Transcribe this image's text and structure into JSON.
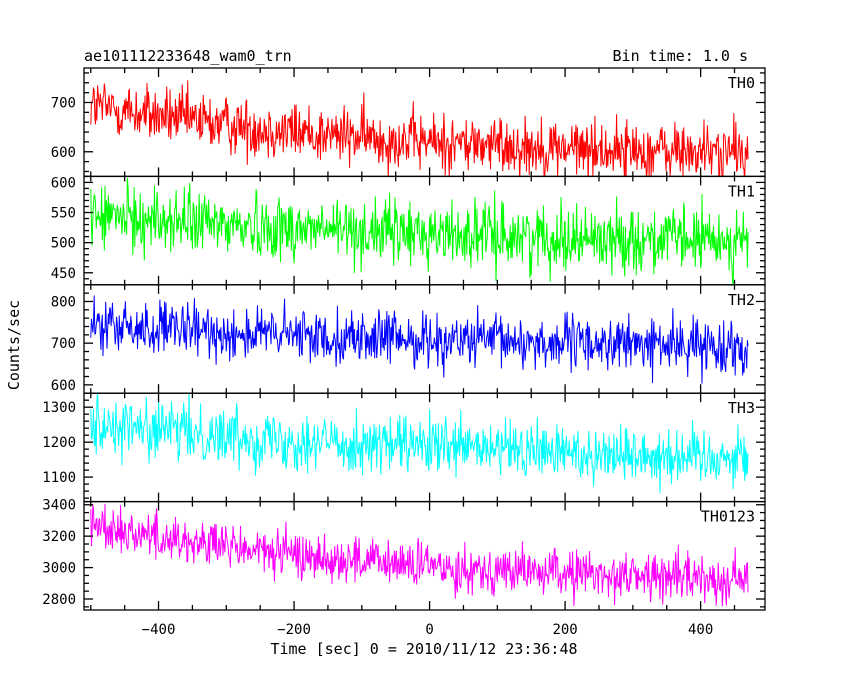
{
  "header": {
    "title": "ae101112233648_wam0_trn",
    "bin_time": "Bin time: 1.0 s"
  },
  "chart_data": {
    "type": "line",
    "xlabel": "Time [sec] 0 = 2010/11/12 23:36:48",
    "ylabel": "Counts/sec",
    "xlim": [
      -510,
      495
    ],
    "x_ticks": [
      -400,
      -200,
      0,
      200,
      400
    ],
    "x_range": [
      -500,
      470
    ],
    "series": [
      {
        "name": "TH0",
        "color": "#ff0000",
        "ylim": [
          550,
          770
        ],
        "y_ticks": [
          600,
          700
        ],
        "start": 695,
        "end": 585,
        "noise": 30,
        "decay": 2.2,
        "minor": 20
      },
      {
        "name": "TH1",
        "color": "#00ff00",
        "ylim": [
          430,
          610
        ],
        "y_ticks": [
          450,
          500,
          550,
          600
        ],
        "start": 545,
        "end": 492,
        "noise": 27,
        "decay": 1.6,
        "minor": 10
      },
      {
        "name": "TH2",
        "color": "#0000ff",
        "ylim": [
          580,
          840
        ],
        "y_ticks": [
          600,
          700,
          800
        ],
        "start": 740,
        "end": 672,
        "noise": 32,
        "decay": 1.2,
        "minor": 20
      },
      {
        "name": "TH3",
        "color": "#00ffff",
        "ylim": [
          1030,
          1340
        ],
        "y_ticks": [
          1100,
          1200,
          1300
        ],
        "start": 1255,
        "end": 1140,
        "noise": 42,
        "decay": 1.8,
        "minor": 20
      },
      {
        "name": "TH0123",
        "color": "#ff00ff",
        "ylim": [
          2730,
          3420
        ],
        "y_ticks": [
          2800,
          3000,
          3200,
          3400
        ],
        "start": 3280,
        "end": 2890,
        "noise": 75,
        "decay": 2.3,
        "minor": 50
      }
    ]
  }
}
